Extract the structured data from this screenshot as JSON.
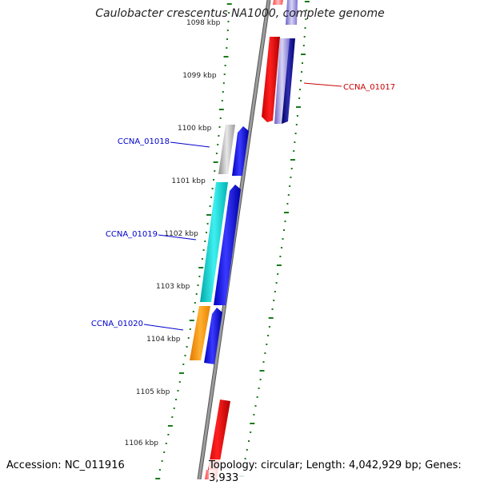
{
  "title": "Caulobacter crescentus NA1000, complete genome",
  "accession_label": "Accession: NC_011916",
  "topology_label": "Topology: circular; Length: 4,042,929 bp; Genes: 3,933",
  "colors": {
    "backbone": "#8a8a8a",
    "ticks": "#1a7a1a",
    "forward_cds": "#0000ee",
    "reverse_cds": "#ee0000",
    "label_blue": "#0000cc",
    "label_red": "#cc0000"
  },
  "ticks": [
    "1098 kbp",
    "1099 kbp",
    "1100 kbp",
    "1101 kbp",
    "1102 kbp",
    "1103 kbp",
    "1104 kbp",
    "1105 kbp",
    "1106 kbp"
  ],
  "genes": [
    {
      "id": "CCNA_01017",
      "label": "CCNA_01017"
    },
    {
      "id": "CCNA_01018",
      "label": "CCNA_01018"
    },
    {
      "id": "CCNA_01019",
      "label": "CCNA_01019"
    },
    {
      "id": "CCNA_01020",
      "label": "CCNA_01020"
    }
  ]
}
